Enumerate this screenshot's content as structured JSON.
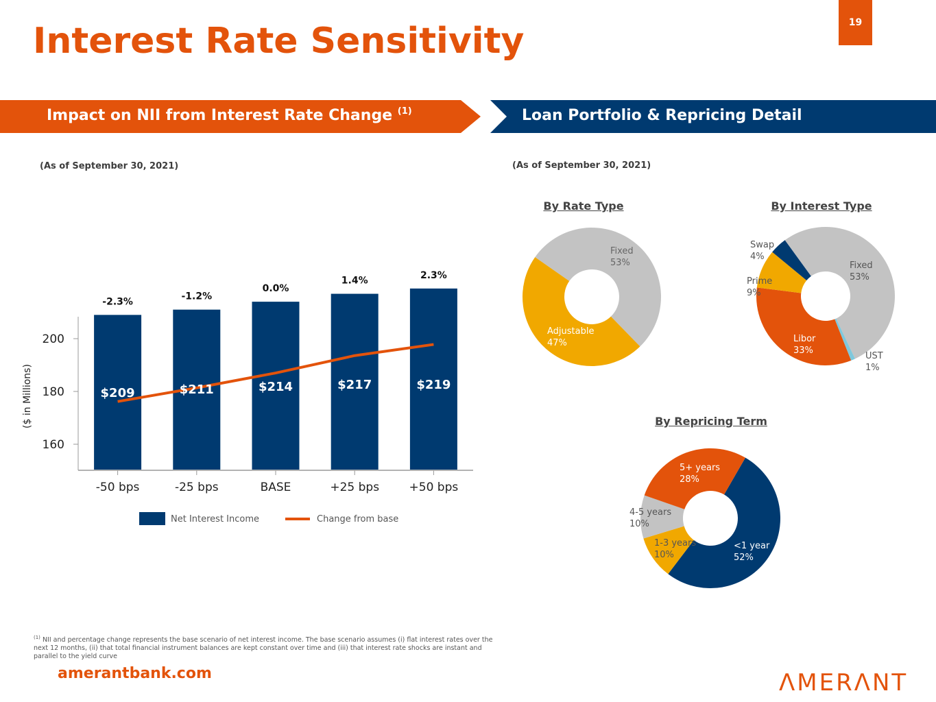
{
  "header": {
    "title": "Interest Rate Sensitivity",
    "page_number": "19"
  },
  "colors": {
    "orange": "#E3530B",
    "navy": "#003A70",
    "gray": "#C3C3C3",
    "gold": "#F1A800",
    "light_blue": "#7FC8DC"
  },
  "left_panel": {
    "banner": "Impact on NII from Interest Rate Change",
    "banner_footnote_ref": "(1)",
    "as_of": "(As of September 30, 2021)"
  },
  "right_panel": {
    "banner": "Loan Portfolio & Repricing Detail",
    "as_of": "(As of September 30, 2021)"
  },
  "chart_data": [
    {
      "type": "bar",
      "title": "Impact on NII from Interest Rate Change",
      "xlabel": "",
      "ylabel": "($ in Millions)",
      "categories": [
        "-50 bps",
        "-25 bps",
        "BASE",
        "+25 bps",
        "+50 bps"
      ],
      "ylim": [
        150,
        215
      ],
      "yticks": [
        160,
        180,
        200
      ],
      "grid": false,
      "series": [
        {
          "name": "Net Interest Income",
          "kind": "bar",
          "values": [
            209,
            211,
            214,
            217,
            219
          ],
          "labels": [
            "$209",
            "$211",
            "$214",
            "$217",
            "$219"
          ]
        },
        {
          "name": "Change from base",
          "kind": "line",
          "values": [
            -2.3,
            -1.2,
            0.0,
            1.4,
            2.3
          ],
          "labels": [
            "-2.3%",
            "-1.2%",
            "0.0%",
            "1.4%",
            "2.3%"
          ]
        }
      ],
      "legend_position": "bottom"
    },
    {
      "type": "pie",
      "title": "By Rate Type",
      "slices": [
        {
          "label": "Fixed",
          "value": 53,
          "text": "53%",
          "color": "#C3C3C3"
        },
        {
          "label": "Adjustable",
          "value": 47,
          "text": "47%",
          "color": "#F1A800"
        }
      ]
    },
    {
      "type": "pie",
      "title": "By Interest Type",
      "slices": [
        {
          "label": "Fixed",
          "value": 53,
          "text": "53%",
          "color": "#C3C3C3"
        },
        {
          "label": "UST",
          "value": 1,
          "text": "1%",
          "color": "#7FC8DC"
        },
        {
          "label": "Libor",
          "value": 33,
          "text": "33%",
          "color": "#E3530B"
        },
        {
          "label": "Prime",
          "value": 9,
          "text": "9%",
          "color": "#F1A800"
        },
        {
          "label": "Swap",
          "value": 4,
          "text": "4%",
          "color": "#003A70"
        }
      ]
    },
    {
      "type": "pie",
      "title": "By Repricing Term",
      "slices": [
        {
          "label": "<1 year",
          "value": 52,
          "text": "52%",
          "color": "#003A70"
        },
        {
          "label": "1-3 years",
          "value": 10,
          "text": "10%",
          "color": "#F1A800"
        },
        {
          "label": "4-5 years",
          "value": 10,
          "text": "10%",
          "color": "#C3C3C3"
        },
        {
          "label": "5+ years",
          "value": 28,
          "text": "28%",
          "color": "#E3530B"
        }
      ]
    }
  ],
  "footnote": {
    "marker": "(1)",
    "text": "NII and percentage change represents the base scenario of  net interest income. The base scenario assumes (i) flat interest rates over the next 12 months, (ii) that total financial instrument balances are kept constant over time and (iii) that interest rate shocks are instant and parallel to the yield curve"
  },
  "footer": {
    "website": "amerantbank.com",
    "logo": "ΛMERΛNT"
  }
}
